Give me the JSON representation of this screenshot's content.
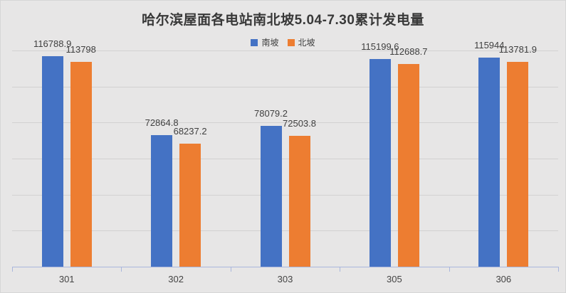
{
  "chart_data": {
    "type": "bar",
    "title": "哈尔滨屋面各电站南北坡5.04-7.30累计发电量",
    "categories": [
      "301",
      "302",
      "303",
      "305",
      "306"
    ],
    "series": [
      {
        "name": "南坡",
        "color": "#4472c4",
        "values": [
          116788.9,
          72864.8,
          78079.2,
          115199.6,
          115944
        ]
      },
      {
        "name": "北坡",
        "color": "#ed7d31",
        "values": [
          113798,
          68237.2,
          72503.8,
          112688.7,
          113781.9
        ]
      }
    ],
    "data_labels": [
      [
        "116788.9",
        "72864.8",
        "78079.2",
        "115199.6",
        "115944"
      ],
      [
        "113798",
        "68237.2",
        "72503.8",
        "112688.7",
        "113781.9"
      ]
    ],
    "ylim": [
      0,
      120000
    ],
    "gridline_interval": 20000,
    "grid": "horizontal",
    "legend_position": "top",
    "y_axis_labels_visible": false,
    "xlabel": "",
    "ylabel": ""
  },
  "colors": {
    "background": "#e7e6e6",
    "gridline": "#d2d1d1",
    "axis_line": "#a9b6dc",
    "text": "#3f3f3f",
    "series_south": "#4472c4",
    "series_north": "#ed7d31"
  }
}
